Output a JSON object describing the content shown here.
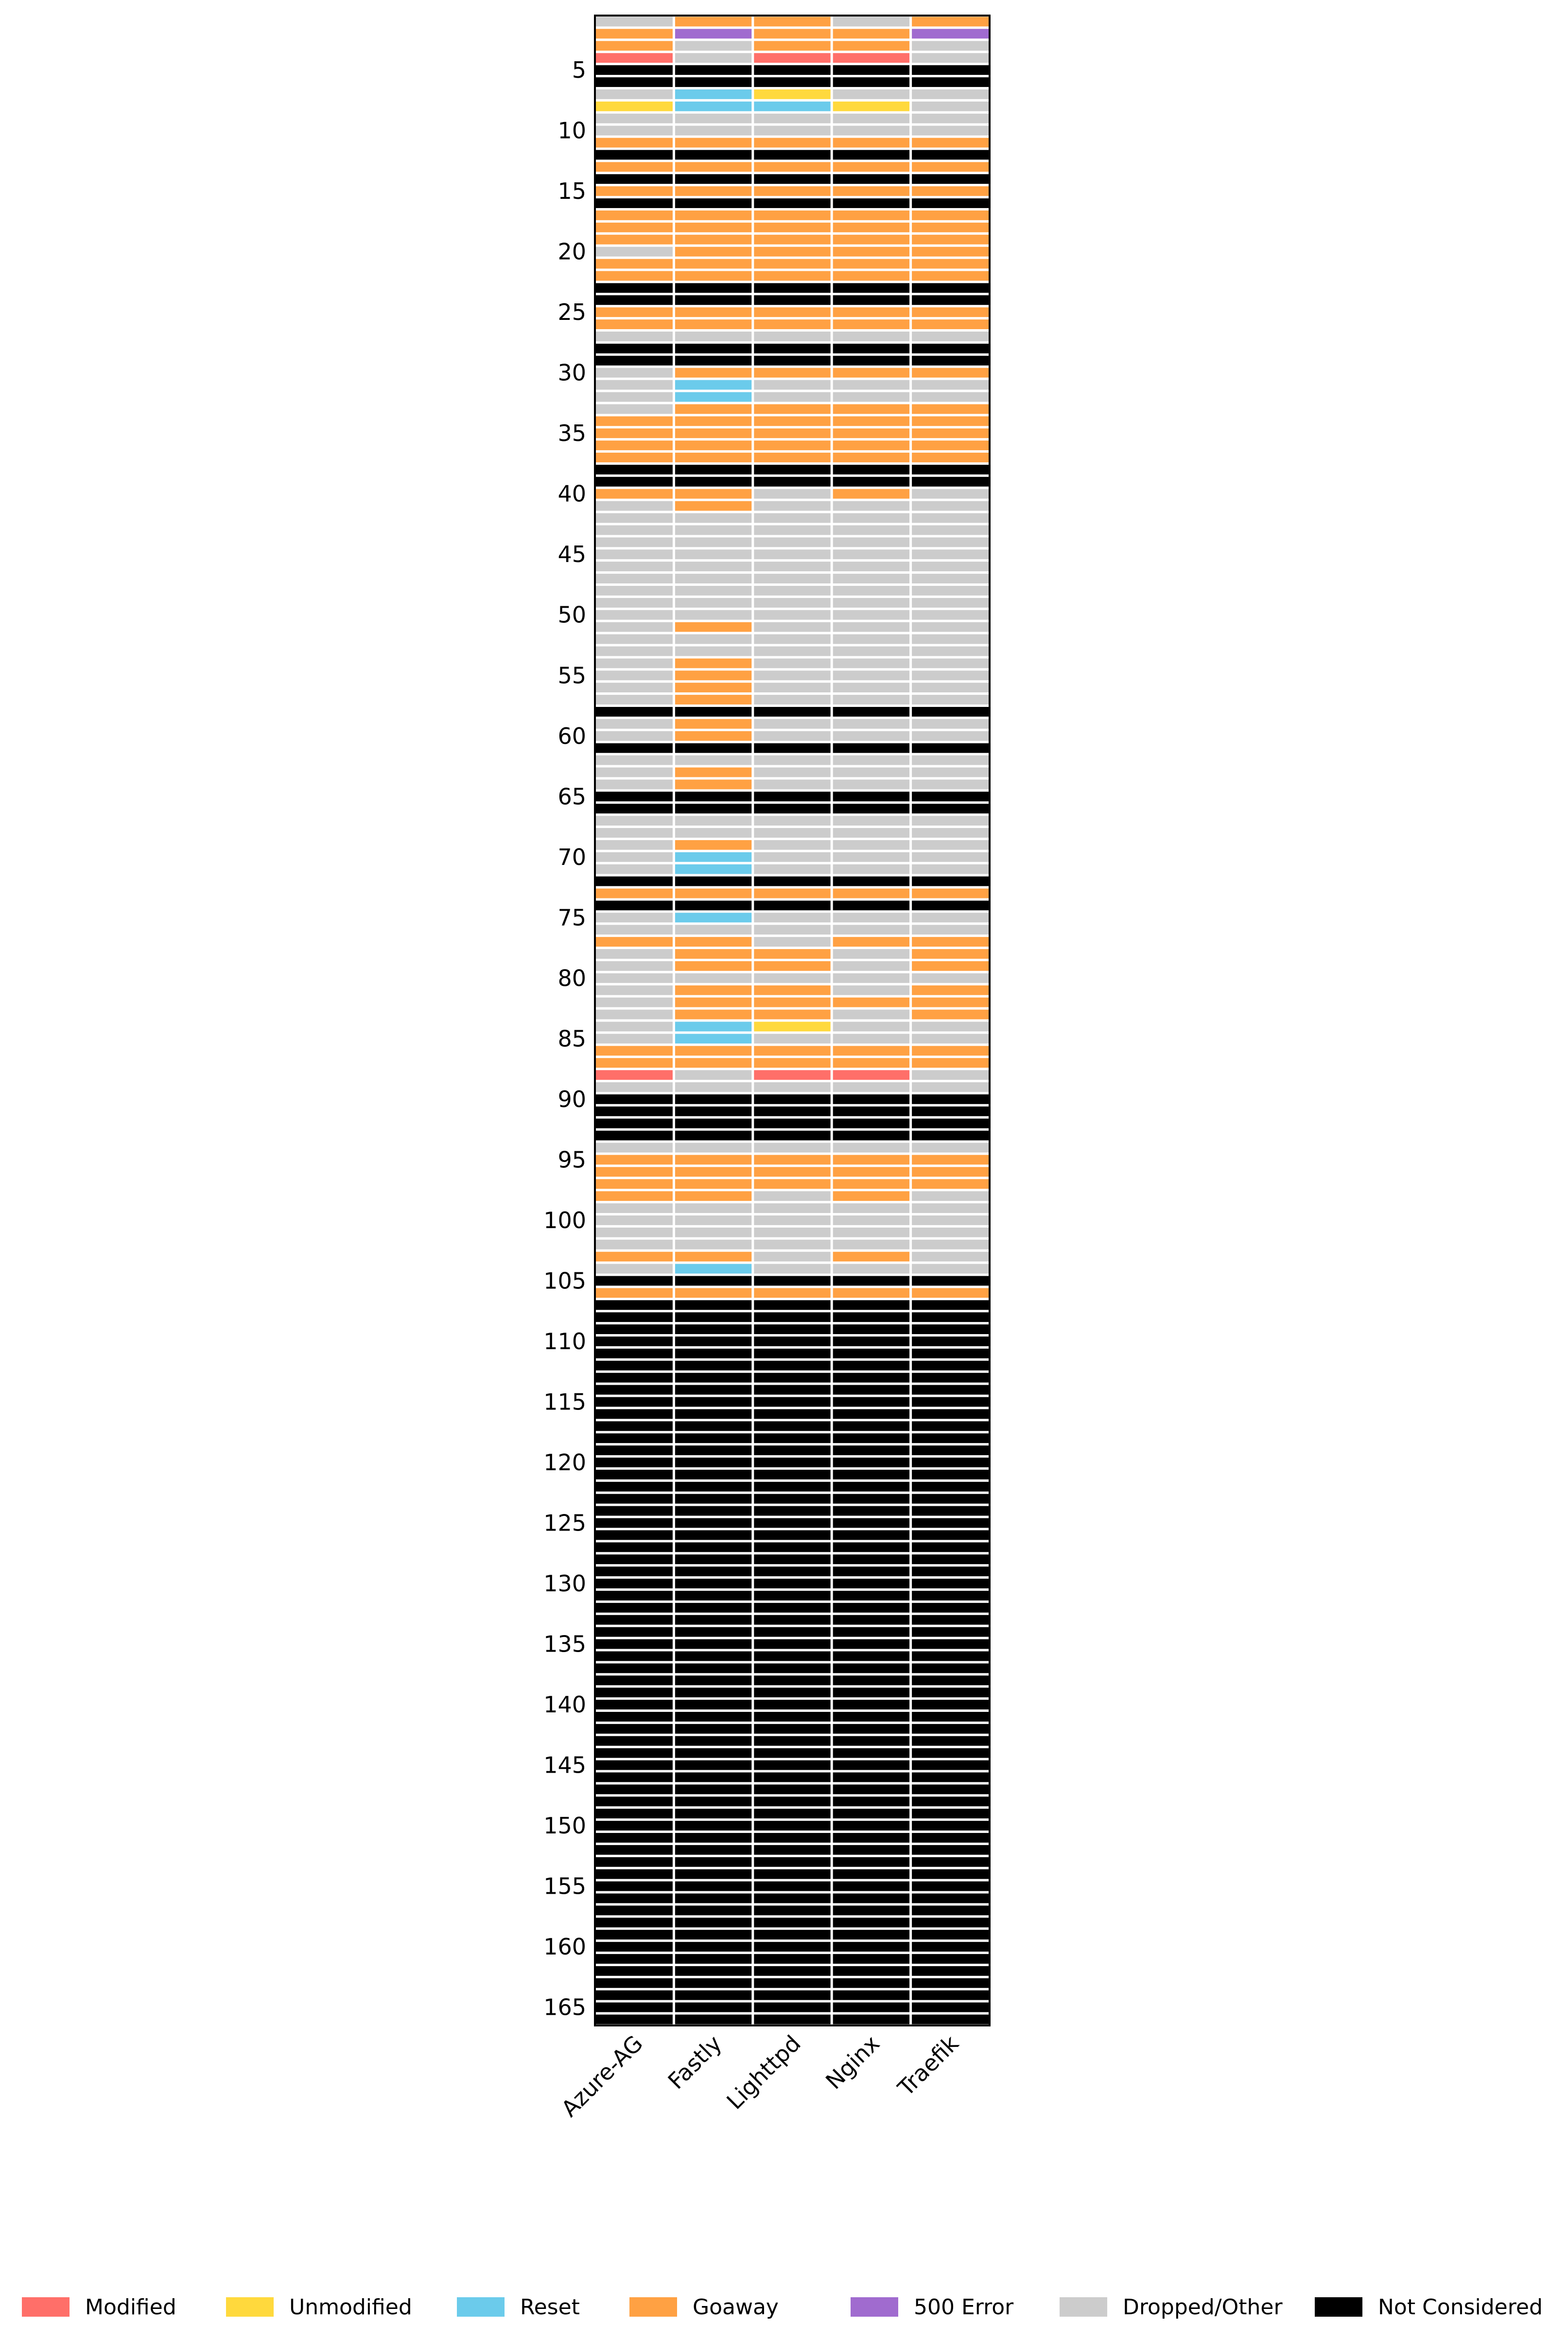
{
  "chart_data": {
    "type": "heatmap",
    "title": "",
    "xlabel": "",
    "ylabel": "",
    "columns": [
      "Azure-AG",
      "Fastly",
      "Lighttpd",
      "Nginx",
      "Traefik"
    ],
    "row_count": 166,
    "y_ticks": [
      5,
      10,
      15,
      20,
      25,
      30,
      35,
      40,
      45,
      50,
      55,
      60,
      65,
      70,
      75,
      80,
      85,
      90,
      95,
      100,
      105,
      110,
      115,
      120,
      125,
      130,
      135,
      140,
      145,
      150,
      155,
      160,
      165
    ],
    "categories": [
      {
        "code": "M",
        "name": "Modified",
        "color": "#ff6f69"
      },
      {
        "code": "U",
        "name": "Unmodified",
        "color": "#ffd93d"
      },
      {
        "code": "R",
        "name": "Reset",
        "color": "#6bcbeb"
      },
      {
        "code": "G",
        "name": "Goaway",
        "color": "#ffa143"
      },
      {
        "code": "E",
        "name": "500 Error",
        "color": "#a06bcf"
      },
      {
        "code": "D",
        "name": "Dropped/Other",
        "color": "#cccccc"
      },
      {
        "code": "N",
        "name": "Not Considered",
        "color": "#000000"
      }
    ],
    "rows": [
      "DGGDG",
      "GEGGE",
      "GDGGD",
      "MDMMD",
      "NNNNN",
      "NNNNN",
      "DRUDD",
      "URRUD",
      "DDDDD",
      "DDDDD",
      "GGGGG",
      "NNNNN",
      "GGGGG",
      "NNNNN",
      "GGGGG",
      "NNNNN",
      "GGGGG",
      "GGGGG",
      "GGGGG",
      "DGGGG",
      "GGGGG",
      "GGGGG",
      "NNNNN",
      "NNNNN",
      "GGGGG",
      "GGGGG",
      "DDDDD",
      "NNNNN",
      "NNNNN",
      "DGGGG",
      "DRDDD",
      "DRDDD",
      "DGGGG",
      "GGGGG",
      "GGGGG",
      "GGGGG",
      "GGGGG",
      "NNNNN",
      "NNNNN",
      "GGDGD",
      "DGDDD",
      "DDDDD",
      "DDDDD",
      "DDDDD",
      "DDDDD",
      "DDDDD",
      "DDDDD",
      "DDDDD",
      "DDDDD",
      "DDDDD",
      "DGDDD",
      "DDDDD",
      "DDDDD",
      "DGDDD",
      "DGDDD",
      "DGDDD",
      "DGDDD",
      "NNNNN",
      "DGDDD",
      "DGDDD",
      "NNNNN",
      "DDDDD",
      "DGDDD",
      "DGDDD",
      "NNNNN",
      "NNNNN",
      "DDDDD",
      "DDDDD",
      "DGDDD",
      "DRDDD",
      "DRDDD",
      "NNNNN",
      "GGGGG",
      "NNNNN",
      "DRDDD",
      "DDDDD",
      "GGDGG",
      "DGGDG",
      "DGGDG",
      "DDDDD",
      "DGGDG",
      "DGGGG",
      "DGGDG",
      "DRUDD",
      "DRDDD",
      "GGGGG",
      "GGGGG",
      "MDMMD",
      "DDDDD",
      "NNNNN",
      "NNNNN",
      "NNNNN",
      "NNNNN",
      "DDDDD",
      "GGGGG",
      "GGGGG",
      "GGGGG",
      "GGDGD",
      "DDDDD",
      "DDDDD",
      "DDDDD",
      "DDDDD",
      "GGDGD",
      "DRDDD",
      "NNNNN",
      "GGGGG",
      "NNNNN",
      "NNNNN",
      "NNNNN",
      "NNNNN",
      "NNNNN",
      "NNNNN",
      "NNNNN",
      "NNNNN",
      "NNNNN",
      "NNNNN",
      "NNNNN",
      "NNNNN",
      "NNNNN",
      "NNNNN",
      "NNNNN",
      "NNNNN",
      "NNNNN",
      "NNNNN",
      "NNNNN",
      "NNNNN",
      "NNNNN",
      "NNNNN",
      "NNNNN",
      "NNNNN",
      "NNNNN",
      "NNNNN",
      "NNNNN",
      "NNNNN",
      "NNNNN",
      "NNNNN",
      "NNNNN",
      "NNNNN",
      "NNNNN",
      "NNNNN",
      "NNNNN",
      "NNNNN",
      "NNNNN",
      "NNNNN",
      "NNNNN",
      "NNNNN",
      "NNNNN",
      "NNNNN",
      "NNNNN",
      "NNNNN",
      "NNNNN",
      "NNNNN",
      "NNNNN",
      "NNNNN",
      "NNNNN",
      "NNNNN",
      "NNNNN",
      "NNNNN",
      "NNNNN",
      "NNNNN",
      "NNNNN",
      "NNNNN",
      "NNNNN",
      "NNNNN",
      "NNNNN",
      "NNNNN"
    ]
  }
}
